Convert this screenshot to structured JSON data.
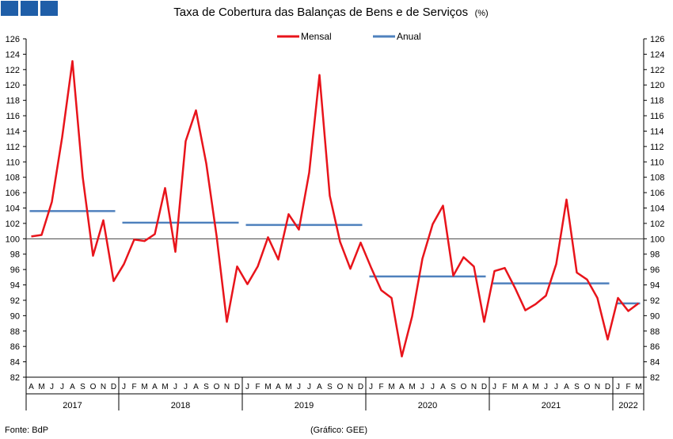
{
  "title": "Taxa de Cobertura das Balanças de Bens e de Serviços",
  "title_unit": "(%)",
  "source": "Fonte: BdP",
  "credit": "(Gráfico: GEE)",
  "colors": {
    "mensal": "#e8141b",
    "anual": "#4f81bd",
    "logo": "#1f5ea8",
    "axis": "#000000"
  },
  "chart_data": {
    "type": "line",
    "ylim": [
      82,
      126
    ],
    "ystep": 2,
    "yticks": [
      82,
      84,
      86,
      88,
      90,
      92,
      94,
      96,
      98,
      100,
      102,
      104,
      106,
      108,
      110,
      112,
      114,
      116,
      118,
      120,
      122,
      124,
      126
    ],
    "reference_line": 100,
    "legend_position": "top-center",
    "month_labels": [
      "A",
      "M",
      "J",
      "J",
      "A",
      "S",
      "O",
      "N",
      "D",
      "J",
      "F",
      "M",
      "A",
      "M",
      "J",
      "J",
      "A",
      "S",
      "O",
      "N",
      "D",
      "J",
      "F",
      "M",
      "A",
      "M",
      "J",
      "J",
      "A",
      "S",
      "O",
      "N",
      "D",
      "J",
      "F",
      "M",
      "A",
      "M",
      "J",
      "J",
      "A",
      "S",
      "O",
      "N",
      "D",
      "J",
      "F",
      "M",
      "A",
      "M",
      "J",
      "J",
      "A",
      "S",
      "O",
      "N",
      "D",
      "J",
      "F",
      "M"
    ],
    "years": [
      {
        "label": "2017",
        "start": 0,
        "end": 8
      },
      {
        "label": "2018",
        "start": 9,
        "end": 20
      },
      {
        "label": "2019",
        "start": 21,
        "end": 32
      },
      {
        "label": "2020",
        "start": 33,
        "end": 44
      },
      {
        "label": "2021",
        "start": 45,
        "end": 56
      },
      {
        "label": "2022",
        "start": 57,
        "end": 59
      }
    ],
    "series": [
      {
        "name": "Mensal",
        "values": [
          100.3,
          100.5,
          104.8,
          113.2,
          123.1,
          108.0,
          97.8,
          102.4,
          94.5,
          96.7,
          99.9,
          99.7,
          100.6,
          106.6,
          98.3,
          112.7,
          116.7,
          109.8,
          100.4,
          89.2,
          96.4,
          94.1,
          96.4,
          100.2,
          97.3,
          103.2,
          101.2,
          108.6,
          121.3,
          105.6,
          99.6,
          96.1,
          99.5,
          96.3,
          93.3,
          92.3,
          84.7,
          89.9,
          97.4,
          101.9,
          104.3,
          95.2,
          97.6,
          96.4,
          89.2,
          95.8,
          96.2,
          93.6,
          90.7,
          91.5,
          92.6,
          96.7,
          105.1,
          95.6,
          94.7,
          92.3,
          86.9,
          92.3,
          90.6,
          91.6
        ]
      },
      {
        "name": "Anual",
        "segments": [
          {
            "from": 0,
            "to": 8,
            "value": 103.6
          },
          {
            "from": 9,
            "to": 20,
            "value": 102.1
          },
          {
            "from": 21,
            "to": 32,
            "value": 101.8
          },
          {
            "from": 33,
            "to": 44,
            "value": 95.1
          },
          {
            "from": 45,
            "to": 56,
            "value": 94.2
          },
          {
            "from": 57,
            "to": 59,
            "value": 91.6
          }
        ]
      }
    ]
  }
}
